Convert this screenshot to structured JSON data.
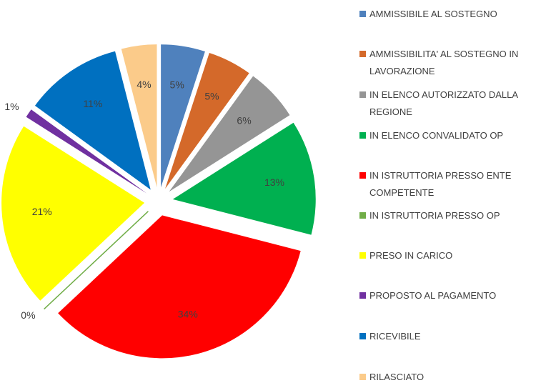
{
  "chart_data": {
    "type": "pie",
    "categories": [
      "AMMISSIBILE AL SOSTEGNO",
      "AMMISSIBILITA' AL SOSTEGNO IN LAVORAZIONE",
      "IN ELENCO AUTORIZZATO DALLA REGIONE",
      "IN ELENCO CONVALIDATO OP",
      "IN ISTRUTTORIA PRESSO ENTE COMPETENTE",
      "IN ISTRUTTORIA PRESSO OP",
      "PRESO IN CARICO",
      "PROPOSTO AL PAGAMENTO",
      "RICEVIBILE",
      "RILASCIATO"
    ],
    "values": [
      5,
      5,
      6,
      13,
      34,
      0,
      21,
      1,
      11,
      4
    ],
    "value_labels": [
      "5%",
      "5%",
      "6%",
      "13%",
      "34%",
      "0%",
      "21%",
      "1%",
      "11%",
      "4%"
    ],
    "colors": [
      "#4f81bd",
      "#d4692a",
      "#959595",
      "#00b050",
      "#ff0000",
      "#70ad47",
      "#ffff00",
      "#7030a0",
      "#0070c0",
      "#fbcb8a"
    ],
    "legend": "right"
  }
}
